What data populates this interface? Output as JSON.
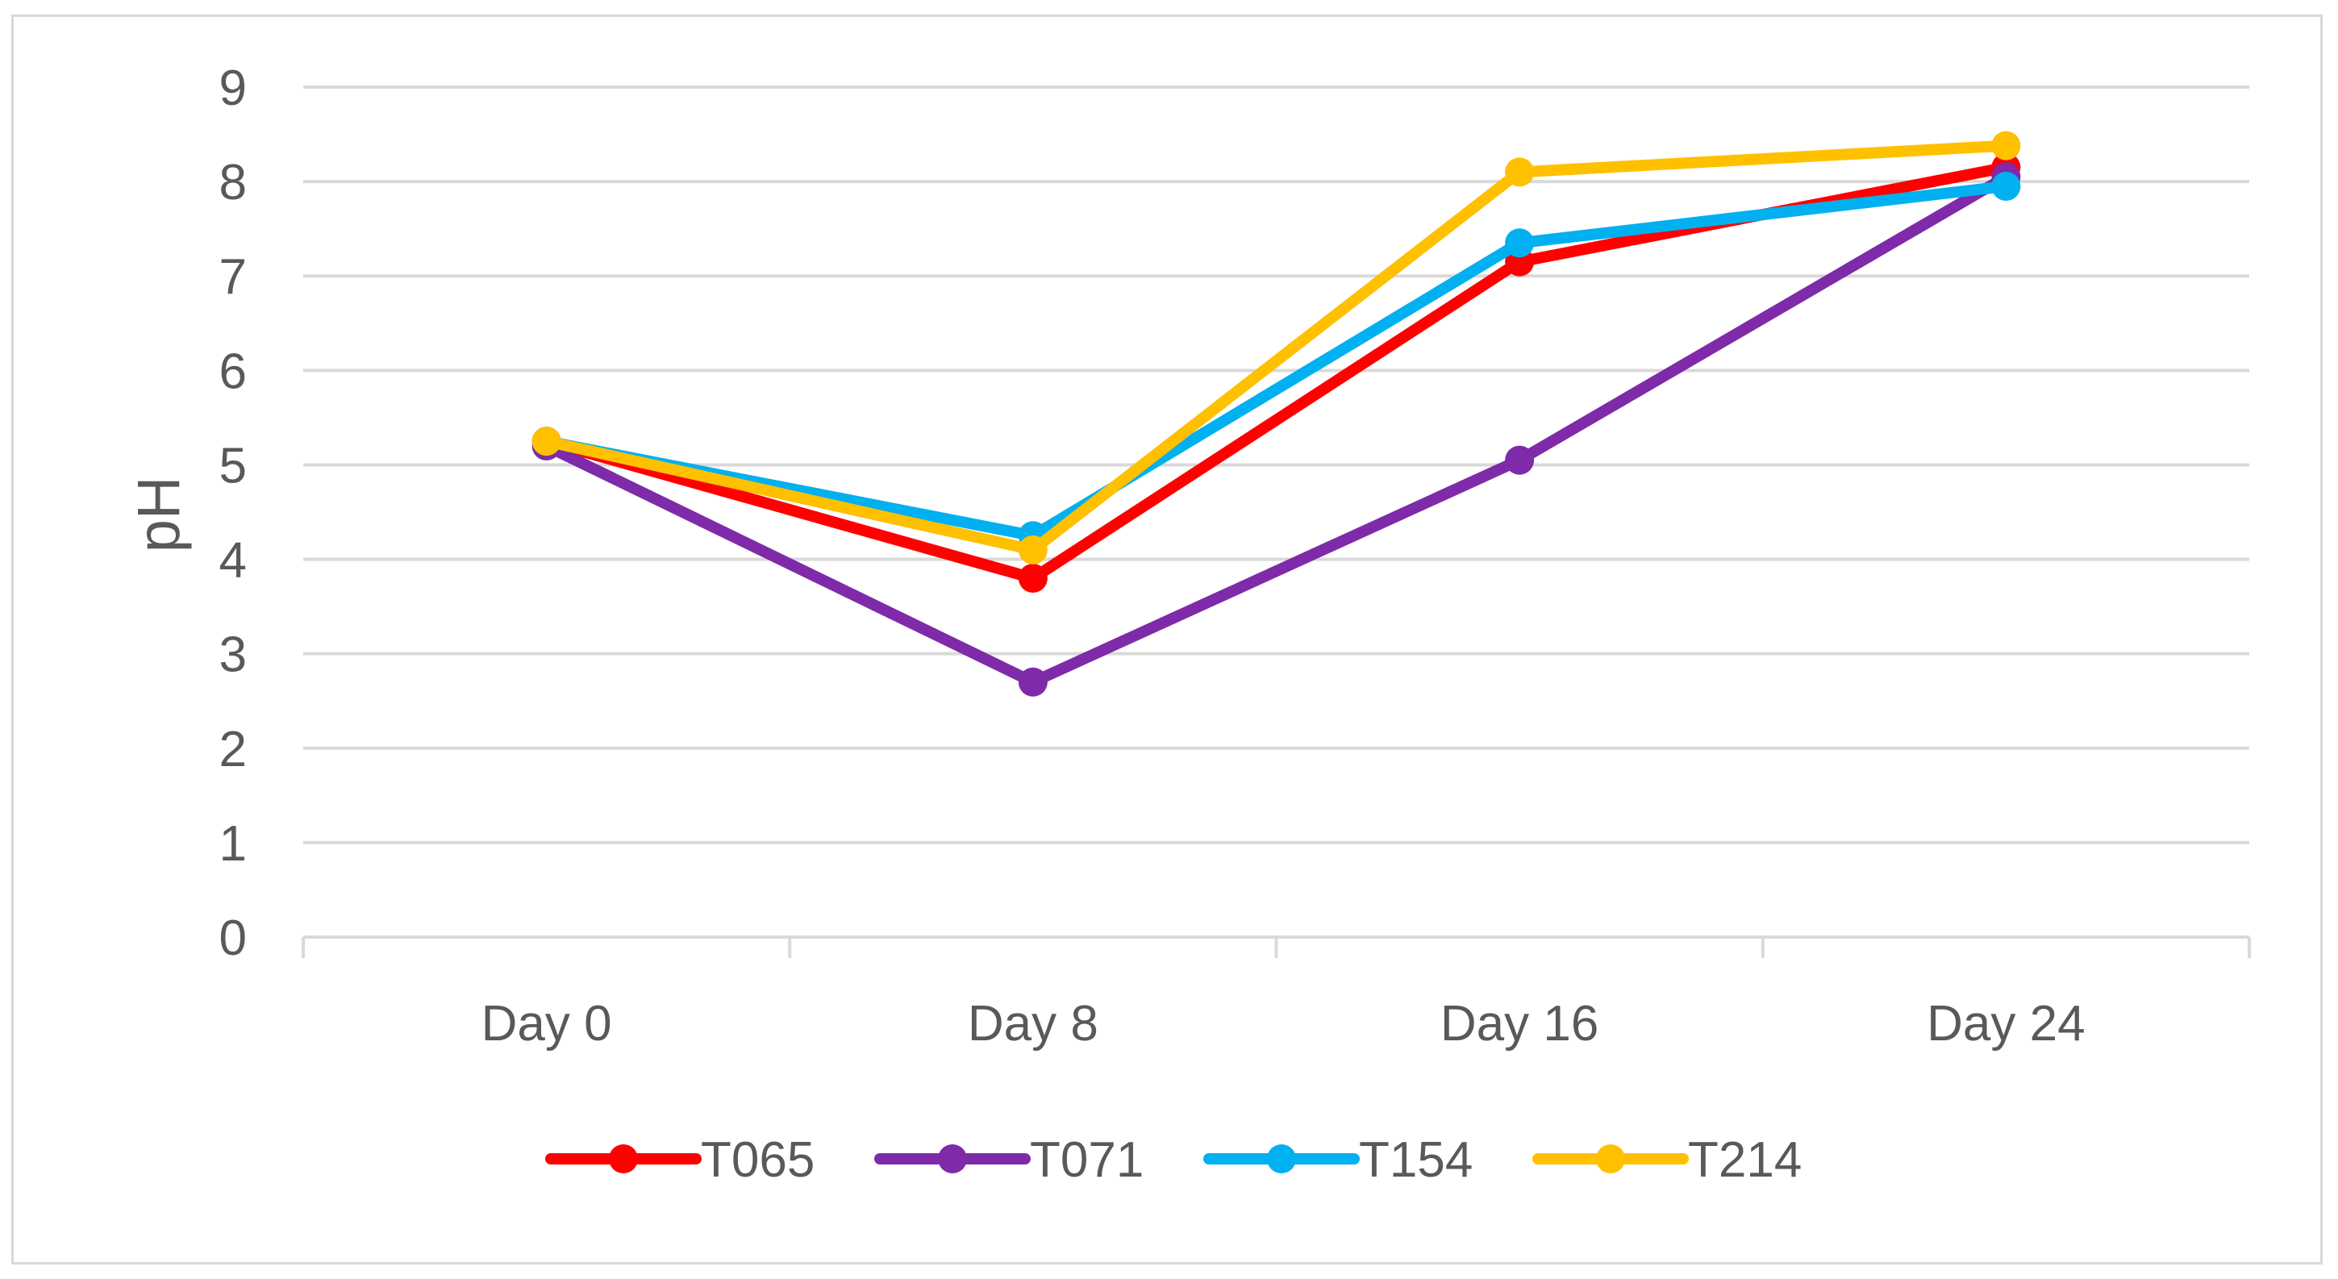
{
  "chart_data": {
    "type": "line",
    "title": "",
    "xlabel": "",
    "ylabel": "pH",
    "ylim": [
      0,
      9
    ],
    "yticks": [
      "0",
      "1",
      "2",
      "3",
      "4",
      "5",
      "6",
      "7",
      "8",
      "9"
    ],
    "categories": [
      "Day 0",
      "Day 8",
      "Day 16",
      "Day 24"
    ],
    "grid": true,
    "legend_position": "bottom",
    "series": [
      {
        "name": "T065",
        "color": "#ff0000",
        "values": [
          5.25,
          3.8,
          7.15,
          8.15
        ]
      },
      {
        "name": "T071",
        "color": "#7f2aa8",
        "values": [
          5.2,
          2.7,
          5.05,
          8.05
        ]
      },
      {
        "name": "T154",
        "color": "#00b0f0",
        "values": [
          5.25,
          4.25,
          7.35,
          7.95
        ]
      },
      {
        "name": "T214",
        "color": "#ffc000",
        "values": [
          5.25,
          4.1,
          8.1,
          8.38
        ]
      }
    ]
  }
}
